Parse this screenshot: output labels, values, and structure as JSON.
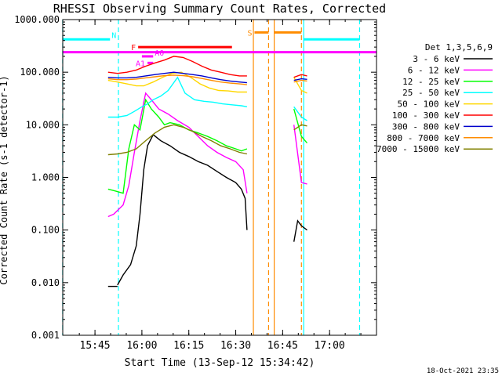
{
  "chart_data": {
    "type": "line",
    "title": "RHESSI Observing Summary Count Rates, Corrected",
    "xlabel": "Start Time (13-Sep-12 15:34:42)",
    "ylabel": "Corrected Count Rate (s-1 detector-1)",
    "xlim": [
      15.5783,
      17.25
    ],
    "ylim": [
      0.001,
      1000
    ],
    "yscale": "log",
    "grid": false,
    "legend_position": "right",
    "legend_title": "Det 1,3,5,6,9",
    "x_ticks": [
      {
        "value": 15.75,
        "label": "15:45"
      },
      {
        "value": 16.0,
        "label": "16:00"
      },
      {
        "value": 16.25,
        "label": "16:15"
      },
      {
        "value": 16.5,
        "label": "16:30"
      },
      {
        "value": 16.75,
        "label": "16:45"
      },
      {
        "value": 17.0,
        "label": "17:00"
      }
    ],
    "y_ticks": [
      {
        "value": 1000,
        "label": "1000.000"
      },
      {
        "value": 100,
        "label": "100.000"
      },
      {
        "value": 10,
        "label": "10.000"
      },
      {
        "value": 1,
        "label": "1.000"
      },
      {
        "value": 0.1,
        "label": "0.100"
      },
      {
        "value": 0.01,
        "label": "0.010"
      },
      {
        "value": 0.001,
        "label": "0.001"
      }
    ],
    "series": [
      {
        "name": "3 - 6 keV",
        "color": "#000000",
        "segments": [
          [
            [
              15.82,
              0.0085
            ],
            [
              15.87,
              0.0085
            ]
          ],
          [
            [
              15.87,
              0.009
            ],
            [
              15.9,
              0.014
            ],
            [
              15.94,
              0.022
            ],
            [
              15.97,
              0.05
            ],
            [
              15.99,
              0.2
            ],
            [
              16.01,
              1.4
            ],
            [
              16.03,
              4.0
            ],
            [
              16.06,
              6.5
            ],
            [
              16.1,
              5.0
            ],
            [
              16.15,
              4.0
            ],
            [
              16.2,
              3.0
            ],
            [
              16.25,
              2.5
            ],
            [
              16.3,
              2.0
            ],
            [
              16.35,
              1.7
            ],
            [
              16.4,
              1.3
            ],
            [
              16.45,
              1.0
            ],
            [
              16.5,
              0.8
            ],
            [
              16.53,
              0.6
            ],
            [
              16.55,
              0.4
            ],
            [
              16.56,
              0.1
            ]
          ],
          [
            [
              16.81,
              0.06
            ],
            [
              16.83,
              0.15
            ],
            [
              16.85,
              0.12
            ],
            [
              16.88,
              0.1
            ]
          ]
        ]
      },
      {
        "name": "6 - 12 keV",
        "color": "#ff00ff",
        "segments": [
          [
            [
              15.82,
              0.18
            ],
            [
              15.85,
              0.2
            ],
            [
              15.9,
              0.3
            ],
            [
              15.93,
              0.7
            ],
            [
              15.96,
              3.0
            ],
            [
              15.99,
              12
            ],
            [
              16.02,
              40
            ],
            [
              16.05,
              30
            ],
            [
              16.09,
              20
            ],
            [
              16.14,
              16
            ],
            [
              16.19,
              12
            ],
            [
              16.25,
              9
            ],
            [
              16.3,
              6
            ],
            [
              16.35,
              4
            ],
            [
              16.4,
              3
            ],
            [
              16.45,
              2.4
            ],
            [
              16.5,
              2.0
            ],
            [
              16.54,
              1.4
            ],
            [
              16.56,
              0.5
            ]
          ],
          [
            [
              16.81,
              10
            ],
            [
              16.85,
              0.8
            ],
            [
              16.88,
              0.75
            ]
          ]
        ]
      },
      {
        "name": "12 - 25 keV",
        "color": "#00ff00",
        "segments": [
          [
            [
              15.82,
              0.6
            ],
            [
              15.86,
              0.55
            ],
            [
              15.9,
              0.5
            ],
            [
              15.93,
              3.5
            ],
            [
              15.96,
              10
            ],
            [
              15.99,
              8
            ],
            [
              16.02,
              30
            ],
            [
              16.05,
              20
            ],
            [
              16.09,
              14
            ],
            [
              16.12,
              10
            ],
            [
              16.15,
              11
            ],
            [
              16.2,
              10
            ],
            [
              16.25,
              8
            ],
            [
              16.3,
              7
            ],
            [
              16.35,
              6
            ],
            [
              16.4,
              5
            ],
            [
              16.45,
              4
            ],
            [
              16.5,
              3.5
            ],
            [
              16.53,
              3.2
            ],
            [
              16.56,
              3.5
            ]
          ],
          [
            [
              16.81,
              20
            ],
            [
              16.85,
              6
            ],
            [
              16.88,
              4.5
            ]
          ]
        ]
      },
      {
        "name": "25 - 50 keV",
        "color": "#00ffff",
        "segments": [
          [
            [
              15.82,
              14
            ],
            [
              15.87,
              14
            ],
            [
              15.92,
              15
            ],
            [
              15.96,
              18
            ],
            [
              16.0,
              22
            ],
            [
              16.03,
              25
            ],
            [
              16.06,
              30
            ],
            [
              16.1,
              35
            ],
            [
              16.14,
              45
            ],
            [
              16.19,
              80
            ],
            [
              16.23,
              40
            ],
            [
              16.28,
              30
            ],
            [
              16.33,
              28
            ],
            [
              16.38,
              27
            ],
            [
              16.43,
              25
            ],
            [
              16.48,
              24
            ],
            [
              16.53,
              23
            ],
            [
              16.56,
              22
            ]
          ],
          [
            [
              16.81,
              22
            ],
            [
              16.85,
              14
            ],
            [
              16.88,
              12
            ]
          ]
        ]
      },
      {
        "name": "50 - 100 keV",
        "color": "#ffd700",
        "segments": [
          [
            [
              15.82,
              70
            ],
            [
              15.87,
              65
            ],
            [
              15.92,
              60
            ],
            [
              15.97,
              55
            ],
            [
              16.01,
              55
            ],
            [
              16.06,
              65
            ],
            [
              16.11,
              80
            ],
            [
              16.16,
              95
            ],
            [
              16.21,
              100
            ],
            [
              16.26,
              80
            ],
            [
              16.31,
              60
            ],
            [
              16.36,
              50
            ],
            [
              16.41,
              45
            ],
            [
              16.46,
              44
            ],
            [
              16.51,
              42
            ],
            [
              16.56,
              42
            ]
          ],
          [
            [
              16.81,
              80
            ],
            [
              16.85,
              45
            ],
            [
              16.88,
              40
            ]
          ]
        ]
      },
      {
        "name": "100 - 300 keV",
        "color": "#ff0000",
        "segments": [
          [
            [
              15.82,
              100
            ],
            [
              15.87,
              95
            ],
            [
              15.92,
              100
            ],
            [
              15.97,
              110
            ],
            [
              16.02,
              130
            ],
            [
              16.07,
              150
            ],
            [
              16.12,
              170
            ],
            [
              16.17,
              200
            ],
            [
              16.22,
              190
            ],
            [
              16.27,
              160
            ],
            [
              16.32,
              130
            ],
            [
              16.37,
              110
            ],
            [
              16.42,
              100
            ],
            [
              16.47,
              90
            ],
            [
              16.52,
              85
            ],
            [
              16.56,
              85
            ]
          ],
          [
            [
              16.81,
              80
            ],
            [
              16.85,
              90
            ],
            [
              16.88,
              85
            ]
          ]
        ]
      },
      {
        "name": "300 - 800 keV",
        "color": "#0000cc",
        "segments": [
          [
            [
              15.82,
              80
            ],
            [
              15.87,
              78
            ],
            [
              15.92,
              78
            ],
            [
              15.97,
              80
            ],
            [
              16.02,
              85
            ],
            [
              16.07,
              90
            ],
            [
              16.12,
              95
            ],
            [
              16.17,
              100
            ],
            [
              16.22,
              95
            ],
            [
              16.27,
              90
            ],
            [
              16.32,
              85
            ],
            [
              16.37,
              78
            ],
            [
              16.42,
              72
            ],
            [
              16.47,
              68
            ],
            [
              16.52,
              65
            ],
            [
              16.56,
              63
            ]
          ],
          [
            [
              16.81,
              70
            ],
            [
              16.85,
              75
            ],
            [
              16.88,
              73
            ]
          ]
        ]
      },
      {
        "name": "800 - 7000 keV",
        "color": "#ff8c00",
        "segments": [
          [
            [
              15.82,
              75
            ],
            [
              15.87,
              72
            ],
            [
              15.92,
              72
            ],
            [
              15.97,
              74
            ],
            [
              16.02,
              78
            ],
            [
              16.07,
              82
            ],
            [
              16.12,
              86
            ],
            [
              16.17,
              88
            ],
            [
              16.22,
              86
            ],
            [
              16.27,
              82
            ],
            [
              16.32,
              76
            ],
            [
              16.37,
              70
            ],
            [
              16.42,
              65
            ],
            [
              16.47,
              62
            ],
            [
              16.52,
              60
            ],
            [
              16.56,
              58
            ]
          ],
          [
            [
              16.81,
              65
            ],
            [
              16.85,
              70
            ],
            [
              16.88,
              68
            ]
          ]
        ]
      },
      {
        "name": "7000 - 15000 keV",
        "color": "#808000",
        "segments": [
          [
            [
              15.82,
              2.7
            ],
            [
              15.87,
              2.8
            ],
            [
              15.92,
              3.0
            ],
            [
              15.97,
              3.5
            ],
            [
              16.02,
              5
            ],
            [
              16.07,
              7
            ],
            [
              16.12,
              9
            ],
            [
              16.17,
              10
            ],
            [
              16.22,
              9
            ],
            [
              16.27,
              7.5
            ],
            [
              16.32,
              6
            ],
            [
              16.37,
              5
            ],
            [
              16.42,
              4
            ],
            [
              16.47,
              3.5
            ],
            [
              16.52,
              3.0
            ],
            [
              16.56,
              2.8
            ]
          ],
          [
            [
              16.81,
              8
            ],
            [
              16.85,
              10
            ],
            [
              16.88,
              9.5
            ]
          ]
        ]
      }
    ],
    "annotations": {
      "vertical_lines": [
        {
          "x": 15.578,
          "color": "#00ffff",
          "style": "dashed"
        },
        {
          "x": 15.875,
          "color": "#00ffff",
          "style": "dashed"
        },
        {
          "x": 16.594,
          "color": "#ff8c00",
          "style": "solid"
        },
        {
          "x": 16.675,
          "color": "#ff8c00",
          "style": "dashed"
        },
        {
          "x": 16.705,
          "color": "#ff8c00",
          "style": "solid"
        },
        {
          "x": 16.85,
          "color": "#ff8c00",
          "style": "dashed"
        },
        {
          "x": 16.862,
          "color": "#00ffff",
          "style": "solid"
        },
        {
          "x": 17.16,
          "color": "#00ffff",
          "style": "dashed"
        }
      ],
      "bars": [
        {
          "label": "N",
          "color": "#00ffff",
          "x0": 15.578,
          "x1": 15.83,
          "y": 420
        },
        {
          "label": "",
          "color": "#00ffff",
          "x0": 16.862,
          "x1": 17.16,
          "y": 420
        },
        {
          "label": "F",
          "color": "#ff0000",
          "x0": 15.98,
          "x1": 16.48,
          "y": 300
        },
        {
          "label": "A0",
          "color": "#ff00ff",
          "x0": 16.0,
          "x1": 16.06,
          "y": 200
        },
        {
          "label": "A1",
          "color": "#ff00ff",
          "x0": 16.03,
          "x1": 16.06,
          "y": 150
        },
        {
          "label": "",
          "color": "#ff00ff",
          "x0": 15.578,
          "x1": 17.25,
          "y": 240
        },
        {
          "label": "S",
          "color": "#ff8c00",
          "x0": 16.6,
          "x1": 16.675,
          "y": 570
        },
        {
          "label": "",
          "color": "#ff8c00",
          "x0": 16.705,
          "x1": 16.85,
          "y": 570
        }
      ]
    },
    "timestamp": "18-Oct-2021 23:35"
  }
}
